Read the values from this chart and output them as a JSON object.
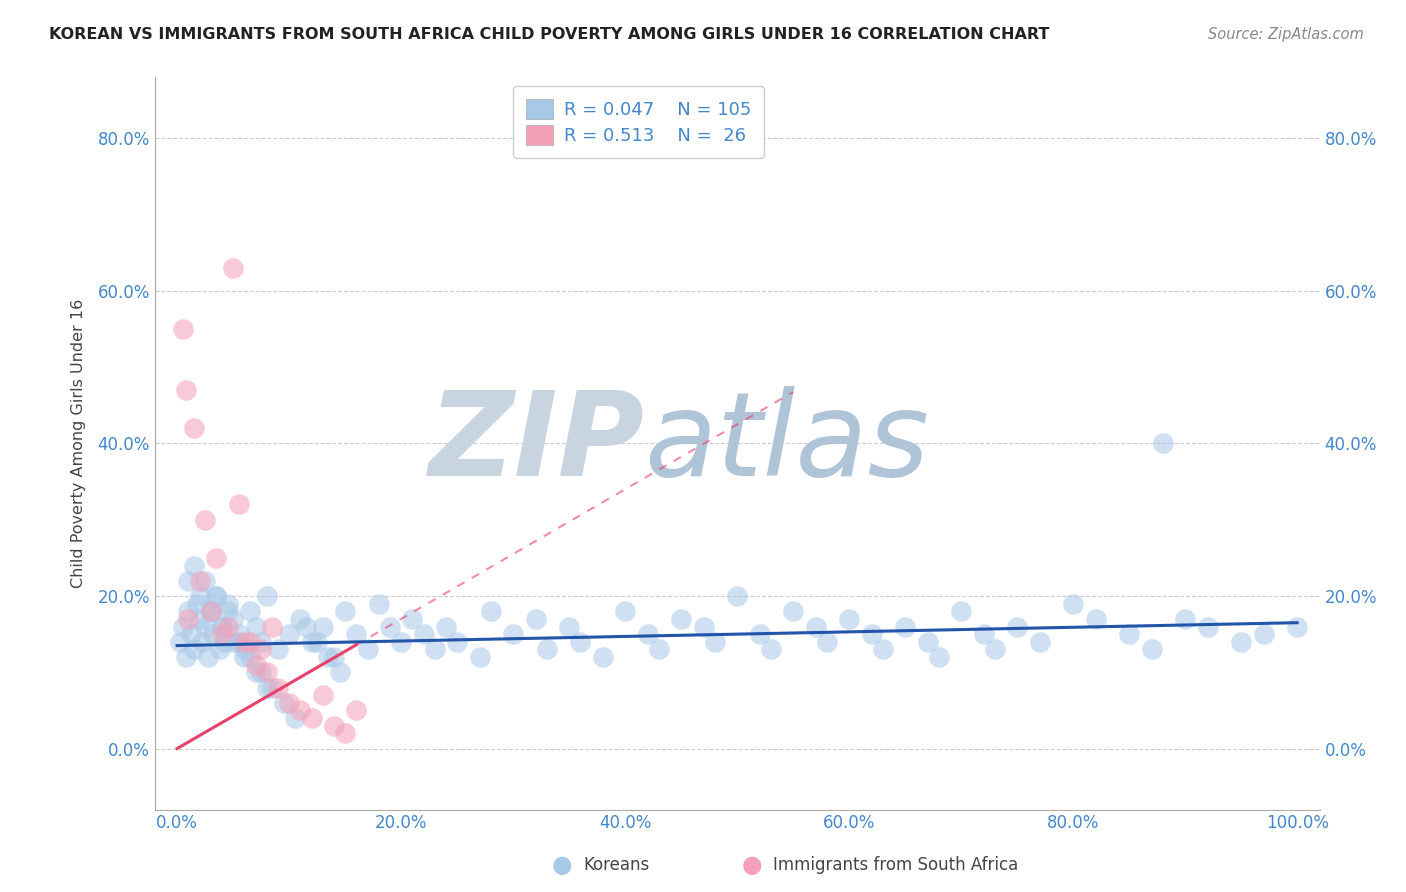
{
  "title": "KOREAN VS IMMIGRANTS FROM SOUTH AFRICA CHILD POVERTY AMONG GIRLS UNDER 16 CORRELATION CHART",
  "source": "Source: ZipAtlas.com",
  "ylabel": "Child Poverty Among Girls Under 16",
  "xlim": [
    -2,
    102
  ],
  "ylim": [
    -8,
    88
  ],
  "xticks": [
    0,
    20,
    40,
    60,
    80,
    100
  ],
  "xticklabels": [
    "0.0%",
    "20.0%",
    "40.0%",
    "60.0%",
    "80.0%",
    "100.0%"
  ],
  "yticks": [
    0,
    20,
    40,
    60,
    80
  ],
  "yticklabels": [
    "0.0%",
    "20.0%",
    "40.0%",
    "60.0%",
    "80.0%"
  ],
  "korean_R": 0.047,
  "korean_N": 105,
  "sa_R": 0.513,
  "sa_N": 26,
  "korean_color": "#a8c8e8",
  "sa_color": "#f4a0b8",
  "korean_line_color": "#2255aa",
  "sa_line_color": "#e84068",
  "watermark_zip": "ZIP",
  "watermark_atlas": "atlas",
  "watermark_color_zip": "#c8d8e8",
  "watermark_color_atlas": "#a8b8d0",
  "legend_border_color": "#cccccc",
  "grid_color": "#cccccc",
  "title_color": "#222222",
  "axis_label_color": "#444444",
  "tick_color": "#4488cc",
  "background_color": "#ffffff",
  "korean_x": [
    0.3,
    0.5,
    0.8,
    1.0,
    1.2,
    1.5,
    1.8,
    2.0,
    2.2,
    2.5,
    2.8,
    3.0,
    3.2,
    3.5,
    3.8,
    4.0,
    4.2,
    4.5,
    5.0,
    5.5,
    6.0,
    6.5,
    7.0,
    7.5,
    8.0,
    9.0,
    10.0,
    11.0,
    12.0,
    13.0,
    14.0,
    15.0,
    16.0,
    17.0,
    18.0,
    19.0,
    20.0,
    21.0,
    22.0,
    23.0,
    24.0,
    25.0,
    27.0,
    28.0,
    30.0,
    32.0,
    33.0,
    35.0,
    36.0,
    38.0,
    40.0,
    42.0,
    43.0,
    45.0,
    47.0,
    48.0,
    50.0,
    52.0,
    53.0,
    55.0,
    57.0,
    58.0,
    60.0,
    62.0,
    63.0,
    65.0,
    67.0,
    68.0,
    70.0,
    72.0,
    73.0,
    75.0,
    77.0,
    80.0,
    82.0,
    85.0,
    87.0,
    90.0,
    92.0,
    95.0,
    97.0,
    100.0,
    1.0,
    2.0,
    3.0,
    4.0,
    5.0,
    6.0,
    7.0,
    8.0,
    1.5,
    2.5,
    3.5,
    4.5,
    5.5,
    6.5,
    7.5,
    8.5,
    9.5,
    10.5,
    11.5,
    12.5,
    13.5,
    14.5,
    88.0
  ],
  "korean_y": [
    14,
    16,
    12,
    18,
    15,
    13,
    19,
    17,
    14,
    16,
    12,
    18,
    15,
    20,
    13,
    16,
    14,
    19,
    17,
    15,
    13,
    18,
    16,
    14,
    20,
    13,
    15,
    17,
    14,
    16,
    12,
    18,
    15,
    13,
    19,
    16,
    14,
    17,
    15,
    13,
    16,
    14,
    12,
    18,
    15,
    17,
    13,
    16,
    14,
    12,
    18,
    15,
    13,
    17,
    16,
    14,
    20,
    15,
    13,
    18,
    16,
    14,
    17,
    15,
    13,
    16,
    14,
    12,
    18,
    15,
    13,
    16,
    14,
    19,
    17,
    15,
    13,
    17,
    16,
    14,
    15,
    16,
    22,
    20,
    18,
    16,
    14,
    12,
    10,
    8,
    24,
    22,
    20,
    18,
    14,
    12,
    10,
    8,
    6,
    4,
    16,
    14,
    12,
    10,
    40
  ],
  "sa_x": [
    0.5,
    0.8,
    1.5,
    2.5,
    3.5,
    4.5,
    5.5,
    6.5,
    7.5,
    8.5,
    1.0,
    2.0,
    3.0,
    4.0,
    5.0,
    6.0,
    7.0,
    8.0,
    9.0,
    10.0,
    11.0,
    12.0,
    13.0,
    14.0,
    15.0,
    16.0
  ],
  "sa_y": [
    55,
    47,
    42,
    30,
    25,
    16,
    32,
    14,
    13,
    16,
    17,
    22,
    18,
    15,
    63,
    14,
    11,
    10,
    8,
    6,
    5,
    4,
    7,
    3,
    2,
    5
  ],
  "korean_line_x": [
    0,
    100
  ],
  "korean_line_y": [
    13.5,
    16.5
  ],
  "sa_line_x": [
    0,
    100
  ],
  "sa_line_y": [
    0,
    85
  ],
  "sa_line_dashed_from": 16
}
